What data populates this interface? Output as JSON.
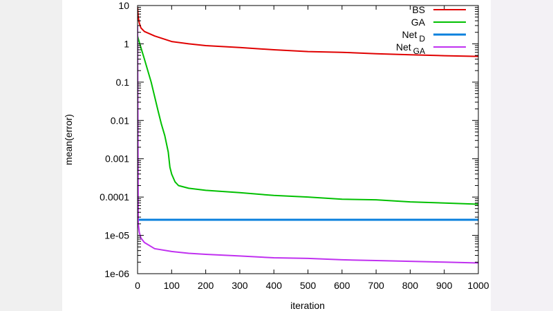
{
  "chart_data": {
    "type": "line",
    "xlabel": "iteration",
    "ylabel": "mean(error)",
    "xlim": [
      0,
      1000
    ],
    "ylim": [
      1e-06,
      10
    ],
    "yscale": "log",
    "x_ticks": [
      0,
      100,
      200,
      300,
      400,
      500,
      600,
      700,
      800,
      900,
      1000
    ],
    "x_tick_labels": [
      "0",
      "100",
      "200",
      "300",
      "400",
      "500",
      "600",
      "700",
      "800",
      "900",
      "1000"
    ],
    "y_ticks": [
      1e-06,
      1e-05,
      0.0001,
      0.001,
      0.01,
      0.1,
      1,
      10
    ],
    "y_tick_labels": [
      "1e-06",
      "1e-05",
      "0.0001",
      "0.001",
      "0.01",
      "0.1",
      "1",
      "10"
    ],
    "legend_position": "top-right",
    "series": [
      {
        "name": "BS",
        "name_sub": "",
        "color": "#e00000",
        "x": [
          0,
          2,
          5,
          10,
          20,
          50,
          100,
          150,
          200,
          300,
          400,
          500,
          600,
          700,
          800,
          900,
          1000
        ],
        "values": [
          9,
          5,
          3.5,
          2.6,
          2.1,
          1.6,
          1.15,
          1.0,
          0.9,
          0.8,
          0.7,
          0.63,
          0.6,
          0.55,
          0.52,
          0.49,
          0.47
        ]
      },
      {
        "name": "GA",
        "name_sub": "",
        "color": "#00c000",
        "x": [
          0,
          5,
          20,
          40,
          60,
          70,
          80,
          90,
          95,
          100,
          110,
          120,
          150,
          200,
          300,
          400,
          500,
          600,
          700,
          800,
          900,
          1000
        ],
        "values": [
          1.6,
          1.1,
          0.4,
          0.1,
          0.018,
          0.008,
          0.004,
          0.0015,
          0.0006,
          0.0004,
          0.00025,
          0.0002,
          0.00017,
          0.00015,
          0.00013,
          0.00011,
          0.0001,
          8.8e-05,
          8.5e-05,
          7.5e-05,
          7e-05,
          6.5e-05
        ]
      },
      {
        "name": "Net",
        "name_sub": "D",
        "color": "#0a80dd",
        "x": [
          0,
          1000
        ],
        "values": [
          2.55e-05,
          2.55e-05
        ]
      },
      {
        "name": "Net",
        "name_sub": "GA",
        "color": "#c030f0",
        "x": [
          0,
          2,
          5,
          10,
          20,
          50,
          100,
          150,
          200,
          300,
          400,
          500,
          600,
          700,
          800,
          900,
          1000
        ],
        "values": [
          3,
          2e-05,
          1.2e-05,
          8.5e-06,
          6.5e-06,
          4.5e-06,
          3.8e-06,
          3.4e-06,
          3.2e-06,
          2.9e-06,
          2.6e-06,
          2.5e-06,
          2.3e-06,
          2.2e-06,
          2.1e-06,
          2e-06,
          1.9e-06
        ]
      }
    ]
  }
}
